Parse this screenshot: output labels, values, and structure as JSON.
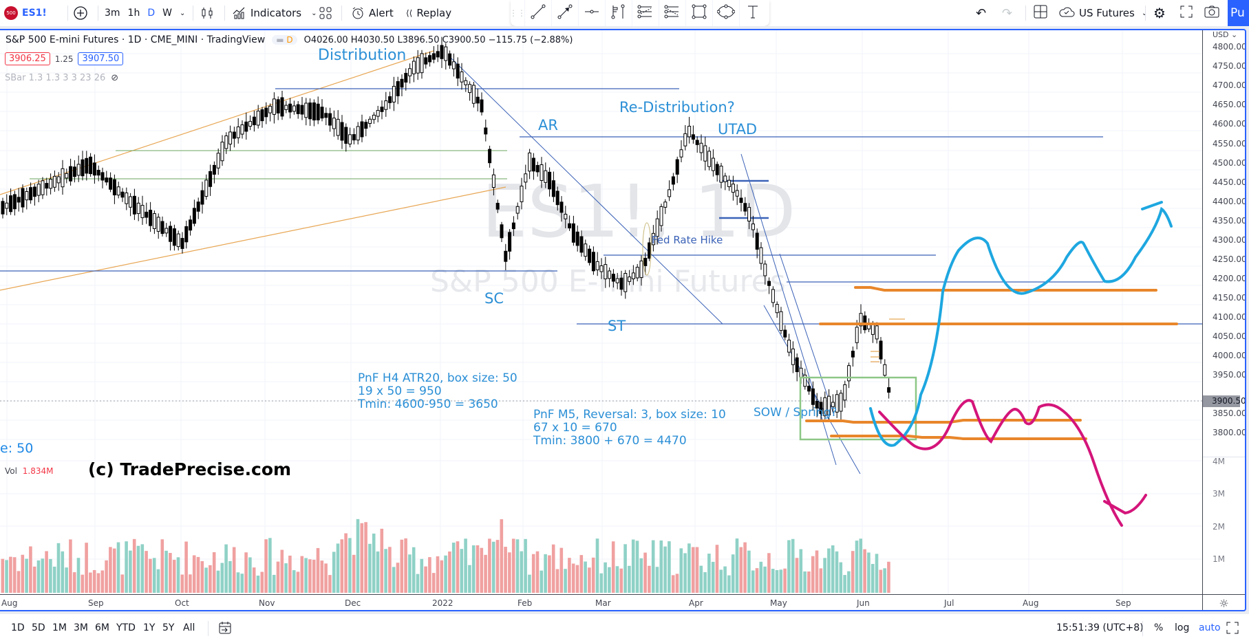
{
  "topbar": {
    "symbol_badge": "500",
    "symbol": "ES1!",
    "intervals": [
      "3m",
      "1h",
      "D",
      "W"
    ],
    "active_interval": "D",
    "indicators_label": "Indicators",
    "alert_label": "Alert",
    "replay_label": "Replay",
    "layout_name": "US Futures",
    "publish_label": "Pu"
  },
  "drawing_tools": [
    "trend-line-icon",
    "arrow-icon",
    "horizontal-ray-icon",
    "pitchfork-icon",
    "fib-retracement-icon",
    "fib-extension-icon",
    "rectangle-icon",
    "ellipse-icon",
    "text-icon"
  ],
  "legend": {
    "title": "S&P 500 E-mini Futures · 1D · CME_MINI · TradingView",
    "delay_badge": "D",
    "open": "O4026.00",
    "high": "H4030.50",
    "low": "L3896.50",
    "close": "C3900.50",
    "change": "−115.75 (−2.88%)",
    "bid": "3906.25",
    "spread": "1.25",
    "ask": "3907.50",
    "indicator": "SBar 1.3 1.3 3 3 23 26",
    "volume_label": "Vol",
    "volume_value": "1.834M"
  },
  "watermark": {
    "symbol": "ES1!, 1D",
    "name": "S&P 500 E-mini Futures"
  },
  "annotations": {
    "distribution": "Distribution",
    "redistribution": "Re-Distribution?",
    "utad": "UTAD",
    "ar": "AR",
    "sc": "SC",
    "st": "ST",
    "fed": "Fed Rate Hike",
    "sow": "SOW / Spring?",
    "pnf1_l1": "PnF H4 ATR20, box size: 50",
    "pnf1_l2": "19 x 50 = 950",
    "pnf1_l3": "Tmin: 4600-950 = 3650",
    "pnf2_l1": "PnF M5, Reversal: 3, box size: 10",
    "pnf2_l2": "67 x 10 = 670",
    "pnf2_l3": "Tmin: 3800 + 670 = 4470",
    "cut_text": "e: 50",
    "copyright": "(c) TradePrecise.com"
  },
  "yaxis": {
    "currency": "USD",
    "labels": [
      "4800.00",
      "4750.00",
      "4700.00",
      "4650.00",
      "4600.00",
      "4550.00",
      "4500.00",
      "4450.00",
      "4400.00",
      "4350.00",
      "4300.00",
      "4250.00",
      "4200.00",
      "4150.00",
      "4100.00",
      "4050.00",
      "4000.00",
      "3950.00",
      "3850.00",
      "3800.00"
    ],
    "last_price": "3900.50",
    "vol_labels": [
      "4M",
      "3M",
      "2M",
      "1M"
    ]
  },
  "xaxis": {
    "labels": [
      "Aug",
      "Sep",
      "Oct",
      "Nov",
      "Dec",
      "2022",
      "Feb",
      "Mar",
      "Apr",
      "May",
      "Jun",
      "Jul",
      "Aug",
      "Sep"
    ]
  },
  "bottombar": {
    "ranges": [
      "1D",
      "5D",
      "1M",
      "3M",
      "6M",
      "YTD",
      "1Y",
      "5Y",
      "All"
    ],
    "clock": "15:51:39 (UTC+8)",
    "percent": "%",
    "log": "log",
    "auto": "auto"
  },
  "colors": {
    "accent": "#2962ff",
    "annotation": "#2b8fd6",
    "orange": "#e8862a",
    "cyan_path": "#1ea7e0",
    "magenta_path": "#d4157a",
    "vol_up": "#8fd1c6",
    "vol_down": "#f0a0a0"
  },
  "chart_data": {
    "type": "candlestick",
    "title": "S&P 500 E-mini Futures · 1D · CME_MINI",
    "ylim": [
      3750,
      4830
    ],
    "key_levels": [
      4710,
      4590,
      4470,
      4380,
      4280,
      4210,
      4100,
      3860,
      3810
    ],
    "last": 3900.5
  }
}
